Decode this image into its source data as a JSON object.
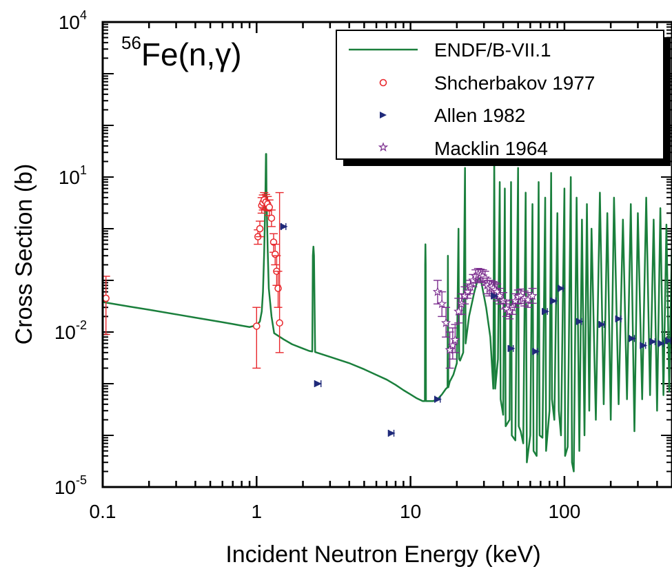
{
  "chart_data": {
    "type": "scatter",
    "reaction_label": {
      "mass_number": "56",
      "element": "Fe",
      "reaction": "(n,γ)"
    },
    "xlabel": "Incident Neutron Energy (keV)",
    "ylabel": "Cross Section (b)",
    "xscale": "log",
    "yscale": "log",
    "xlim": [
      0.1,
      500
    ],
    "ylim": [
      1e-05,
      10000
    ],
    "x_ticks": [
      "0.1",
      "1",
      "10",
      "100"
    ],
    "y_ticks": [
      {
        "base": "10",
        "exp": "-5"
      },
      {
        "base": "10",
        "exp": "-2"
      },
      {
        "base": "10",
        "exp": "1"
      },
      {
        "base": "10",
        "exp": "4"
      }
    ],
    "legend_position": "top-right",
    "series": [
      {
        "name": "ENDF/B-VII.1",
        "kind": "line",
        "color": "#1a7f3c",
        "points": [
          [
            0.1,
            0.038
          ],
          [
            0.15,
            0.031
          ],
          [
            0.2,
            0.027
          ],
          [
            0.3,
            0.022
          ],
          [
            0.4,
            0.019
          ],
          [
            0.5,
            0.017
          ],
          [
            0.6,
            0.0155
          ],
          [
            0.7,
            0.0143
          ],
          [
            0.8,
            0.0133
          ],
          [
            0.9,
            0.0125
          ],
          [
            0.95,
            0.013
          ],
          [
            1.0,
            0.0135
          ],
          [
            1.05,
            0.016
          ],
          [
            1.08,
            0.025
          ],
          [
            1.1,
            0.06
          ],
          [
            1.12,
            0.35
          ],
          [
            1.14,
            4.0
          ],
          [
            1.15,
            28
          ],
          [
            1.155,
            28
          ],
          [
            1.16,
            4.5
          ],
          [
            1.18,
            0.4
          ],
          [
            1.2,
            0.07
          ],
          [
            1.25,
            0.02
          ],
          [
            1.3,
            0.0095
          ],
          [
            1.5,
            0.0072
          ],
          [
            1.7,
            0.0058
          ],
          [
            2.0,
            0.0048
          ],
          [
            2.2,
            0.0043
          ],
          [
            2.3,
            0.0042
          ],
          [
            2.32,
            0.3
          ],
          [
            2.34,
            0.45
          ],
          [
            2.36,
            0.3
          ],
          [
            2.4,
            0.0041
          ],
          [
            3.0,
            0.0033
          ],
          [
            4.0,
            0.0025
          ],
          [
            5.0,
            0.0019
          ],
          [
            6.0,
            0.00148
          ],
          [
            7.0,
            0.0012
          ],
          [
            8.0,
            0.00095
          ],
          [
            9.0,
            0.00075
          ],
          [
            10.0,
            0.00062
          ],
          [
            11.0,
            0.00052
          ],
          [
            12.0,
            0.00046
          ],
          [
            12.4,
            0.00046
          ],
          [
            12.45,
            0.2
          ],
          [
            12.5,
            0.5
          ],
          [
            12.55,
            0.2
          ],
          [
            12.6,
            0.00046
          ],
          [
            14.0,
            0.00046
          ],
          [
            15.0,
            0.0005
          ],
          [
            16.0,
            0.00062
          ],
          [
            17.0,
            0.0008
          ],
          [
            17.4,
            0.00085
          ],
          [
            17.5,
            0.3
          ],
          [
            17.6,
            0.00085
          ],
          [
            18.0,
            0.0011
          ],
          [
            19.0,
            0.0015
          ],
          [
            20.0,
            0.0025
          ],
          [
            20.5,
            1.0
          ],
          [
            20.7,
            0.003
          ],
          [
            21.0,
            0.0028
          ],
          [
            22.0,
            0.004
          ],
          [
            22.6,
            15
          ],
          [
            22.8,
            0.006
          ],
          [
            24.0,
            0.02
          ],
          [
            26.0,
            0.06
          ],
          [
            27.0,
            0.09
          ],
          [
            27.9,
            0.12
          ],
          [
            29.0,
            0.085
          ],
          [
            31.0,
            0.03
          ],
          [
            33.0,
            0.008
          ],
          [
            34.5,
            0.0008
          ],
          [
            35.0,
            25
          ],
          [
            35.5,
            0.0008
          ],
          [
            37.0,
            0.003
          ],
          [
            38.0,
            8
          ],
          [
            38.5,
            0.0005
          ],
          [
            40.0,
            0.00025
          ],
          [
            41.0,
            6
          ],
          [
            41.5,
            0.00015
          ],
          [
            44.0,
            0.0002
          ],
          [
            45.0,
            8
          ],
          [
            45.5,
            0.0001
          ],
          [
            48.0,
            8e-05
          ],
          [
            50.0,
            15
          ],
          [
            50.5,
            0.00015
          ],
          [
            52.0,
            0.00012
          ],
          [
            54.0,
            7e-05
          ],
          [
            56.0,
            5
          ],
          [
            57.0,
            3e-05
          ],
          [
            60.0,
            0.0001
          ],
          [
            62.0,
            3
          ],
          [
            63.0,
            5e-05
          ],
          [
            66.0,
            4e-05
          ],
          [
            68.0,
            8
          ],
          [
            69.0,
            0.0001
          ],
          [
            72.0,
            9e-05
          ],
          [
            75.0,
            4
          ],
          [
            76.0,
            5e-05
          ],
          [
            80.0,
            0.0003
          ],
          [
            82.0,
            12
          ],
          [
            83.0,
            0.0005
          ],
          [
            86.0,
            0.0002
          ],
          [
            90.0,
            2
          ],
          [
            92.0,
            0.0003
          ],
          [
            95.0,
            0.0001
          ],
          [
            100.0,
            6
          ],
          [
            101.0,
            4e-05
          ],
          [
            105.0,
            6e-05
          ],
          [
            110.0,
            10
          ],
          [
            112.0,
            3e-05
          ],
          [
            115.0,
            2e-05
          ],
          [
            120.0,
            4
          ],
          [
            125.0,
            5e-05
          ],
          [
            130.0,
            1.5
          ],
          [
            135.0,
            0.0001
          ],
          [
            140.0,
            3
          ],
          [
            145.0,
            0.0003
          ],
          [
            150.0,
            1
          ],
          [
            160.0,
            0.0002
          ],
          [
            170.0,
            5
          ],
          [
            180.0,
            0.0004
          ],
          [
            190.0,
            2
          ],
          [
            200.0,
            0.0002
          ],
          [
            210.0,
            4
          ],
          [
            225.0,
            0.0004
          ],
          [
            240.0,
            1.5
          ],
          [
            255.0,
            0.0005
          ],
          [
            270.0,
            3
          ],
          [
            285.0,
            0.00012
          ],
          [
            300.0,
            2
          ],
          [
            320.0,
            0.0005
          ],
          [
            340.0,
            4
          ],
          [
            360.0,
            0.0006
          ],
          [
            380.0,
            1.5
          ],
          [
            400.0,
            0.0003
          ],
          [
            420.0,
            2.5
          ],
          [
            440.0,
            0.0006
          ],
          [
            460.0,
            1.2
          ],
          [
            480.0,
            0.0007
          ],
          [
            500.0,
            0.7
          ]
        ]
      },
      {
        "name": "Shcherbakov 1977",
        "kind": "markers",
        "marker": "open-circle",
        "color": "#e8262b",
        "points": [
          {
            "x": 0.105,
            "y": 0.045,
            "lo": 0.009,
            "hi": 0.12
          },
          {
            "x": 1.0,
            "y": 0.013,
            "lo": 0.002,
            "hi": 0.03
          },
          {
            "x": 1.02,
            "y": 0.7,
            "lo": 0.5,
            "hi": 0.95
          },
          {
            "x": 1.05,
            "y": 1.0,
            "lo": 0.7,
            "hi": 1.4
          },
          {
            "x": 1.08,
            "y": 2.8,
            "lo": 2.0,
            "hi": 4.0
          },
          {
            "x": 1.1,
            "y": 3.2,
            "lo": 2.3,
            "hi": 4.5
          },
          {
            "x": 1.12,
            "y": 3.6,
            "lo": 2.6,
            "hi": 5.0
          },
          {
            "x": 1.15,
            "y": 3.3,
            "lo": 2.4,
            "hi": 4.6
          },
          {
            "x": 1.18,
            "y": 3.0,
            "lo": 2.2,
            "hi": 4.2
          },
          {
            "x": 1.21,
            "y": 2.6,
            "lo": 1.8,
            "hi": 3.6
          },
          {
            "x": 1.25,
            "y": 1.6,
            "lo": 1.1,
            "hi": 2.3
          },
          {
            "x": 1.29,
            "y": 0.55,
            "lo": 0.35,
            "hi": 0.8
          },
          {
            "x": 1.32,
            "y": 0.32,
            "lo": 0.2,
            "hi": 0.5
          },
          {
            "x": 1.35,
            "y": 0.15,
            "lo": 0.08,
            "hi": 0.3
          },
          {
            "x": 1.38,
            "y": 0.07,
            "lo": 0.03,
            "hi": 0.15
          },
          {
            "x": 1.41,
            "y": 0.015,
            "lo": 0.004,
            "hi": 5.0
          }
        ]
      },
      {
        "name": "Allen 1982",
        "kind": "markers",
        "marker": "right-triangle",
        "color": "#1f2a7a",
        "points": [
          {
            "x": 1.5,
            "y": 1.1,
            "xerr": 0.05
          },
          {
            "x": 2.5,
            "y": 0.001,
            "xerr": 0.12
          },
          {
            "x": 7.5,
            "y": 0.00011,
            "xerr": 0.3
          },
          {
            "x": 15.0,
            "y": 0.0005,
            "xerr": 0.6
          },
          {
            "x": 35.0,
            "y": 0.05,
            "xerr": 1.2
          },
          {
            "x": 45.0,
            "y": 0.0048,
            "xerr": 1.5
          },
          {
            "x": 65.0,
            "y": 0.0042,
            "xerr": 2.0
          },
          {
            "x": 75.0,
            "y": 0.025,
            "xerr": 2.5
          },
          {
            "x": 85.0,
            "y": 0.04,
            "xerr": 3.0
          },
          {
            "x": 95.0,
            "y": 0.07,
            "xerr": 3.0
          },
          {
            "x": 125.0,
            "y": 0.016,
            "xerr": 4.0
          },
          {
            "x": 175.0,
            "y": 0.014,
            "xerr": 6.0
          },
          {
            "x": 225.0,
            "y": 0.018,
            "xerr": 8.0
          },
          {
            "x": 275.0,
            "y": 0.0075,
            "xerr": 10.0
          },
          {
            "x": 325.0,
            "y": 0.0055,
            "xerr": 12.0
          },
          {
            "x": 375.0,
            "y": 0.0065,
            "xerr": 13.0
          },
          {
            "x": 425.0,
            "y": 0.006,
            "xerr": 14.0
          },
          {
            "x": 475.0,
            "y": 0.0068,
            "xerr": 15.0
          }
        ]
      },
      {
        "name": "Macklin 1964",
        "kind": "markers",
        "marker": "open-star",
        "color": "#7b2d8e",
        "points": [
          {
            "x": 15.0,
            "y": 0.06,
            "lo": 0.035,
            "hi": 0.1
          },
          {
            "x": 16.0,
            "y": 0.035,
            "lo": 0.02,
            "hi": 0.06
          },
          {
            "x": 17.0,
            "y": 0.015,
            "lo": 0.008,
            "hi": 0.03
          },
          {
            "x": 18.0,
            "y": 0.0045,
            "lo": 0.002,
            "hi": 0.01
          },
          {
            "x": 18.8,
            "y": 0.0055,
            "lo": 0.003,
            "hi": 0.012
          },
          {
            "x": 19.5,
            "y": 0.007,
            "lo": 0.004,
            "hi": 0.014
          },
          {
            "x": 20.5,
            "y": 0.025,
            "lo": 0.015,
            "hi": 0.045
          },
          {
            "x": 21.5,
            "y": 0.035,
            "lo": 0.022,
            "hi": 0.055
          },
          {
            "x": 22.5,
            "y": 0.05,
            "lo": 0.035,
            "hi": 0.075
          },
          {
            "x": 23.5,
            "y": 0.06,
            "lo": 0.045,
            "hi": 0.085
          },
          {
            "x": 24.5,
            "y": 0.075,
            "lo": 0.055,
            "hi": 0.1
          },
          {
            "x": 25.5,
            "y": 0.1,
            "lo": 0.075,
            "hi": 0.13
          },
          {
            "x": 26.5,
            "y": 0.12,
            "lo": 0.09,
            "hi": 0.16
          },
          {
            "x": 27.5,
            "y": 0.13,
            "lo": 0.1,
            "hi": 0.17
          },
          {
            "x": 28.5,
            "y": 0.125,
            "lo": 0.095,
            "hi": 0.165
          },
          {
            "x": 29.5,
            "y": 0.12,
            "lo": 0.09,
            "hi": 0.16
          },
          {
            "x": 30.5,
            "y": 0.11,
            "lo": 0.08,
            "hi": 0.15
          },
          {
            "x": 31.5,
            "y": 0.08,
            "lo": 0.055,
            "hi": 0.11
          },
          {
            "x": 32.5,
            "y": 0.07,
            "lo": 0.05,
            "hi": 0.1
          },
          {
            "x": 33.5,
            "y": 0.075,
            "lo": 0.055,
            "hi": 0.1
          },
          {
            "x": 34.5,
            "y": 0.07,
            "lo": 0.05,
            "hi": 0.095
          },
          {
            "x": 35.5,
            "y": 0.065,
            "lo": 0.045,
            "hi": 0.09
          },
          {
            "x": 36.5,
            "y": 0.06,
            "lo": 0.04,
            "hi": 0.085
          },
          {
            "x": 38.0,
            "y": 0.05,
            "lo": 0.035,
            "hi": 0.07
          },
          {
            "x": 40.0,
            "y": 0.04,
            "lo": 0.028,
            "hi": 0.058
          },
          {
            "x": 42.0,
            "y": 0.028,
            "lo": 0.02,
            "hi": 0.04
          },
          {
            "x": 44.0,
            "y": 0.025,
            "lo": 0.018,
            "hi": 0.035
          },
          {
            "x": 46.0,
            "y": 0.03,
            "lo": 0.022,
            "hi": 0.042
          },
          {
            "x": 48.0,
            "y": 0.04,
            "lo": 0.03,
            "hi": 0.055
          },
          {
            "x": 50.0,
            "y": 0.048,
            "lo": 0.035,
            "hi": 0.065
          },
          {
            "x": 52.0,
            "y": 0.05,
            "lo": 0.036,
            "hi": 0.068
          },
          {
            "x": 55.0,
            "y": 0.045,
            "lo": 0.032,
            "hi": 0.062
          },
          {
            "x": 58.0,
            "y": 0.042,
            "lo": 0.03,
            "hi": 0.058
          },
          {
            "x": 62.0,
            "y": 0.05,
            "lo": 0.036,
            "hi": 0.07
          }
        ]
      }
    ]
  }
}
